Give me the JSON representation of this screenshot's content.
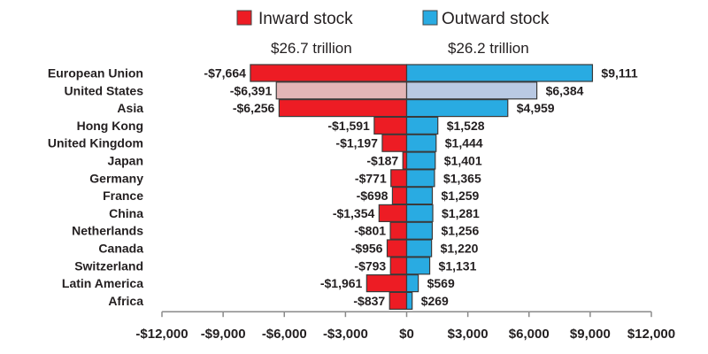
{
  "chart_data": {
    "type": "bar",
    "orientation": "horizontal-diverging",
    "categories": [
      "European Union",
      "United States",
      "Asia",
      "Hong Kong",
      "United Kingdom",
      "Japan",
      "Germany",
      "France",
      "China",
      "Netherlands",
      "Canada",
      "Switzerland",
      "Latin America",
      "Africa"
    ],
    "series": [
      {
        "name": "Inward stock",
        "total_label": "$26.7 trillion",
        "color": "#ed1c24",
        "highlight_color": "#e3b5b6",
        "values": [
          -7664,
          -6391,
          -6256,
          -1591,
          -1197,
          -187,
          -771,
          -698,
          -1354,
          -801,
          -956,
          -793,
          -1961,
          -837
        ],
        "labels": [
          "-$7,664",
          "-$6,391",
          "-$6,256",
          "-$1,591",
          "-$1,197",
          "-$187",
          "-$771",
          "-$698",
          "-$1,354",
          "-$801",
          "-$956",
          "-$793",
          "-$1,961",
          "-$837"
        ]
      },
      {
        "name": "Outward stock",
        "total_label": "$26.2 trillion",
        "color": "#29abe2",
        "highlight_color": "#b9c9e3",
        "values": [
          9111,
          6384,
          4959,
          1528,
          1444,
          1401,
          1365,
          1259,
          1281,
          1256,
          1220,
          1131,
          569,
          269
        ],
        "labels": [
          "$9,111",
          "$6,384",
          "$4,959",
          "$1,528",
          "$1,444",
          "$1,401",
          "$1,365",
          "$1,259",
          "$1,281",
          "$1,256",
          "$1,220",
          "$1,131",
          "$569",
          "$269"
        ]
      }
    ],
    "highlight_category": "United States",
    "xlim": [
      -12000,
      12000
    ],
    "xticks": [
      -12000,
      -9000,
      -6000,
      -3000,
      0,
      3000,
      6000,
      9000,
      12000
    ],
    "xtick_labels": [
      "-$12,000",
      "-$9,000",
      "-$6,000",
      "-$3,000",
      "$0",
      "$3,000",
      "$6,000",
      "$9,000",
      "$12,000"
    ],
    "title": "",
    "xlabel": "",
    "ylabel": "",
    "grid": false,
    "legend_position": "top-center"
  }
}
